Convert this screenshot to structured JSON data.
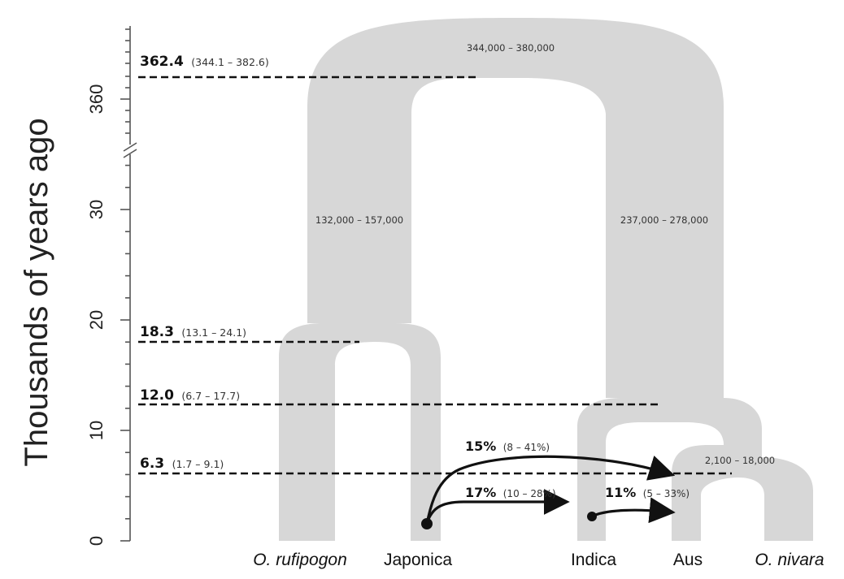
{
  "axis": {
    "title": "Thousands of years ago",
    "ticks": [
      "0",
      "10",
      "20",
      "30",
      "360"
    ]
  },
  "divergences": [
    {
      "estimate": "362.4",
      "interval": "(344.1 – 382.6)"
    },
    {
      "estimate": "18.3",
      "interval": "(13.1 – 24.1)"
    },
    {
      "estimate": "12.0",
      "interval": "(6.7 – 17.7)"
    },
    {
      "estimate": "6.3",
      "interval": "(1.7 – 9.1)"
    }
  ],
  "population_sizes": {
    "ancestral": "344,000 – 380,000",
    "japonica_lineage": "132,000 – 157,000",
    "indica_lineage": "237,000 – 278,000",
    "aus_nivara": "2,100 – 18,000"
  },
  "admixture": [
    {
      "percent": "15%",
      "interval": "(8 – 41%)"
    },
    {
      "percent": "17%",
      "interval": "(10 – 28%)"
    },
    {
      "percent": "11%",
      "interval": "(5 – 33%)"
    }
  ],
  "populations": [
    "O. rufipogon",
    "Japonica",
    "Indica",
    "Aus",
    "O. nivara"
  ],
  "colors": {
    "branch": "#d7d7d7",
    "line": "#111111",
    "axis": "#555555"
  }
}
